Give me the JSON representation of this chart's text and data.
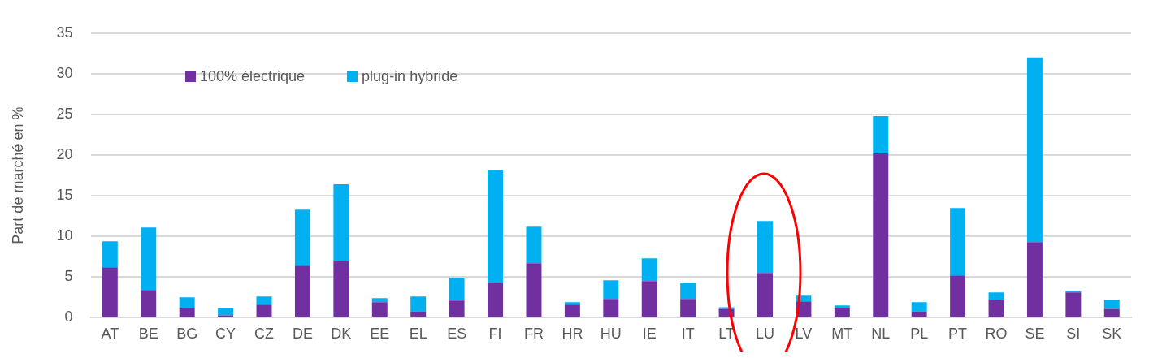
{
  "chart_data": {
    "type": "bar",
    "stacked": true,
    "ylabel": "Part de marché en %",
    "categories": [
      "AT",
      "BE",
      "BG",
      "CY",
      "CZ",
      "DE",
      "DK",
      "EE",
      "EL",
      "ES",
      "FI",
      "FR",
      "HR",
      "HU",
      "IE",
      "IT",
      "LT",
      "LU",
      "LV",
      "MT",
      "NL",
      "PL",
      "PT",
      "RO",
      "SE",
      "SI",
      "SK"
    ],
    "series": [
      {
        "name": "100% électrique",
        "color": "#7030a0",
        "values": [
          6.2,
          3.4,
          1.2,
          0.3,
          1.6,
          6.4,
          7.0,
          1.9,
          0.8,
          2.1,
          4.3,
          6.7,
          1.6,
          2.3,
          4.5,
          2.3,
          1.1,
          5.5,
          2.0,
          1.2,
          20.2,
          0.8,
          5.2,
          2.2,
          9.3,
          3.1,
          1.1
        ]
      },
      {
        "name": "plug-in hybride",
        "color": "#00b0f0",
        "values": [
          3.2,
          7.7,
          1.3,
          0.9,
          1.0,
          6.9,
          9.4,
          0.5,
          1.8,
          2.8,
          13.8,
          4.5,
          0.3,
          2.3,
          2.8,
          2.0,
          0.2,
          6.4,
          0.7,
          0.3,
          4.6,
          1.1,
          8.3,
          0.9,
          22.7,
          0.2,
          1.1
        ]
      }
    ],
    "ylim": [
      0,
      35
    ],
    "yticks": [
      0,
      5,
      10,
      15,
      20,
      25,
      30,
      35
    ],
    "grid": "y",
    "legend": "top left"
  }
}
